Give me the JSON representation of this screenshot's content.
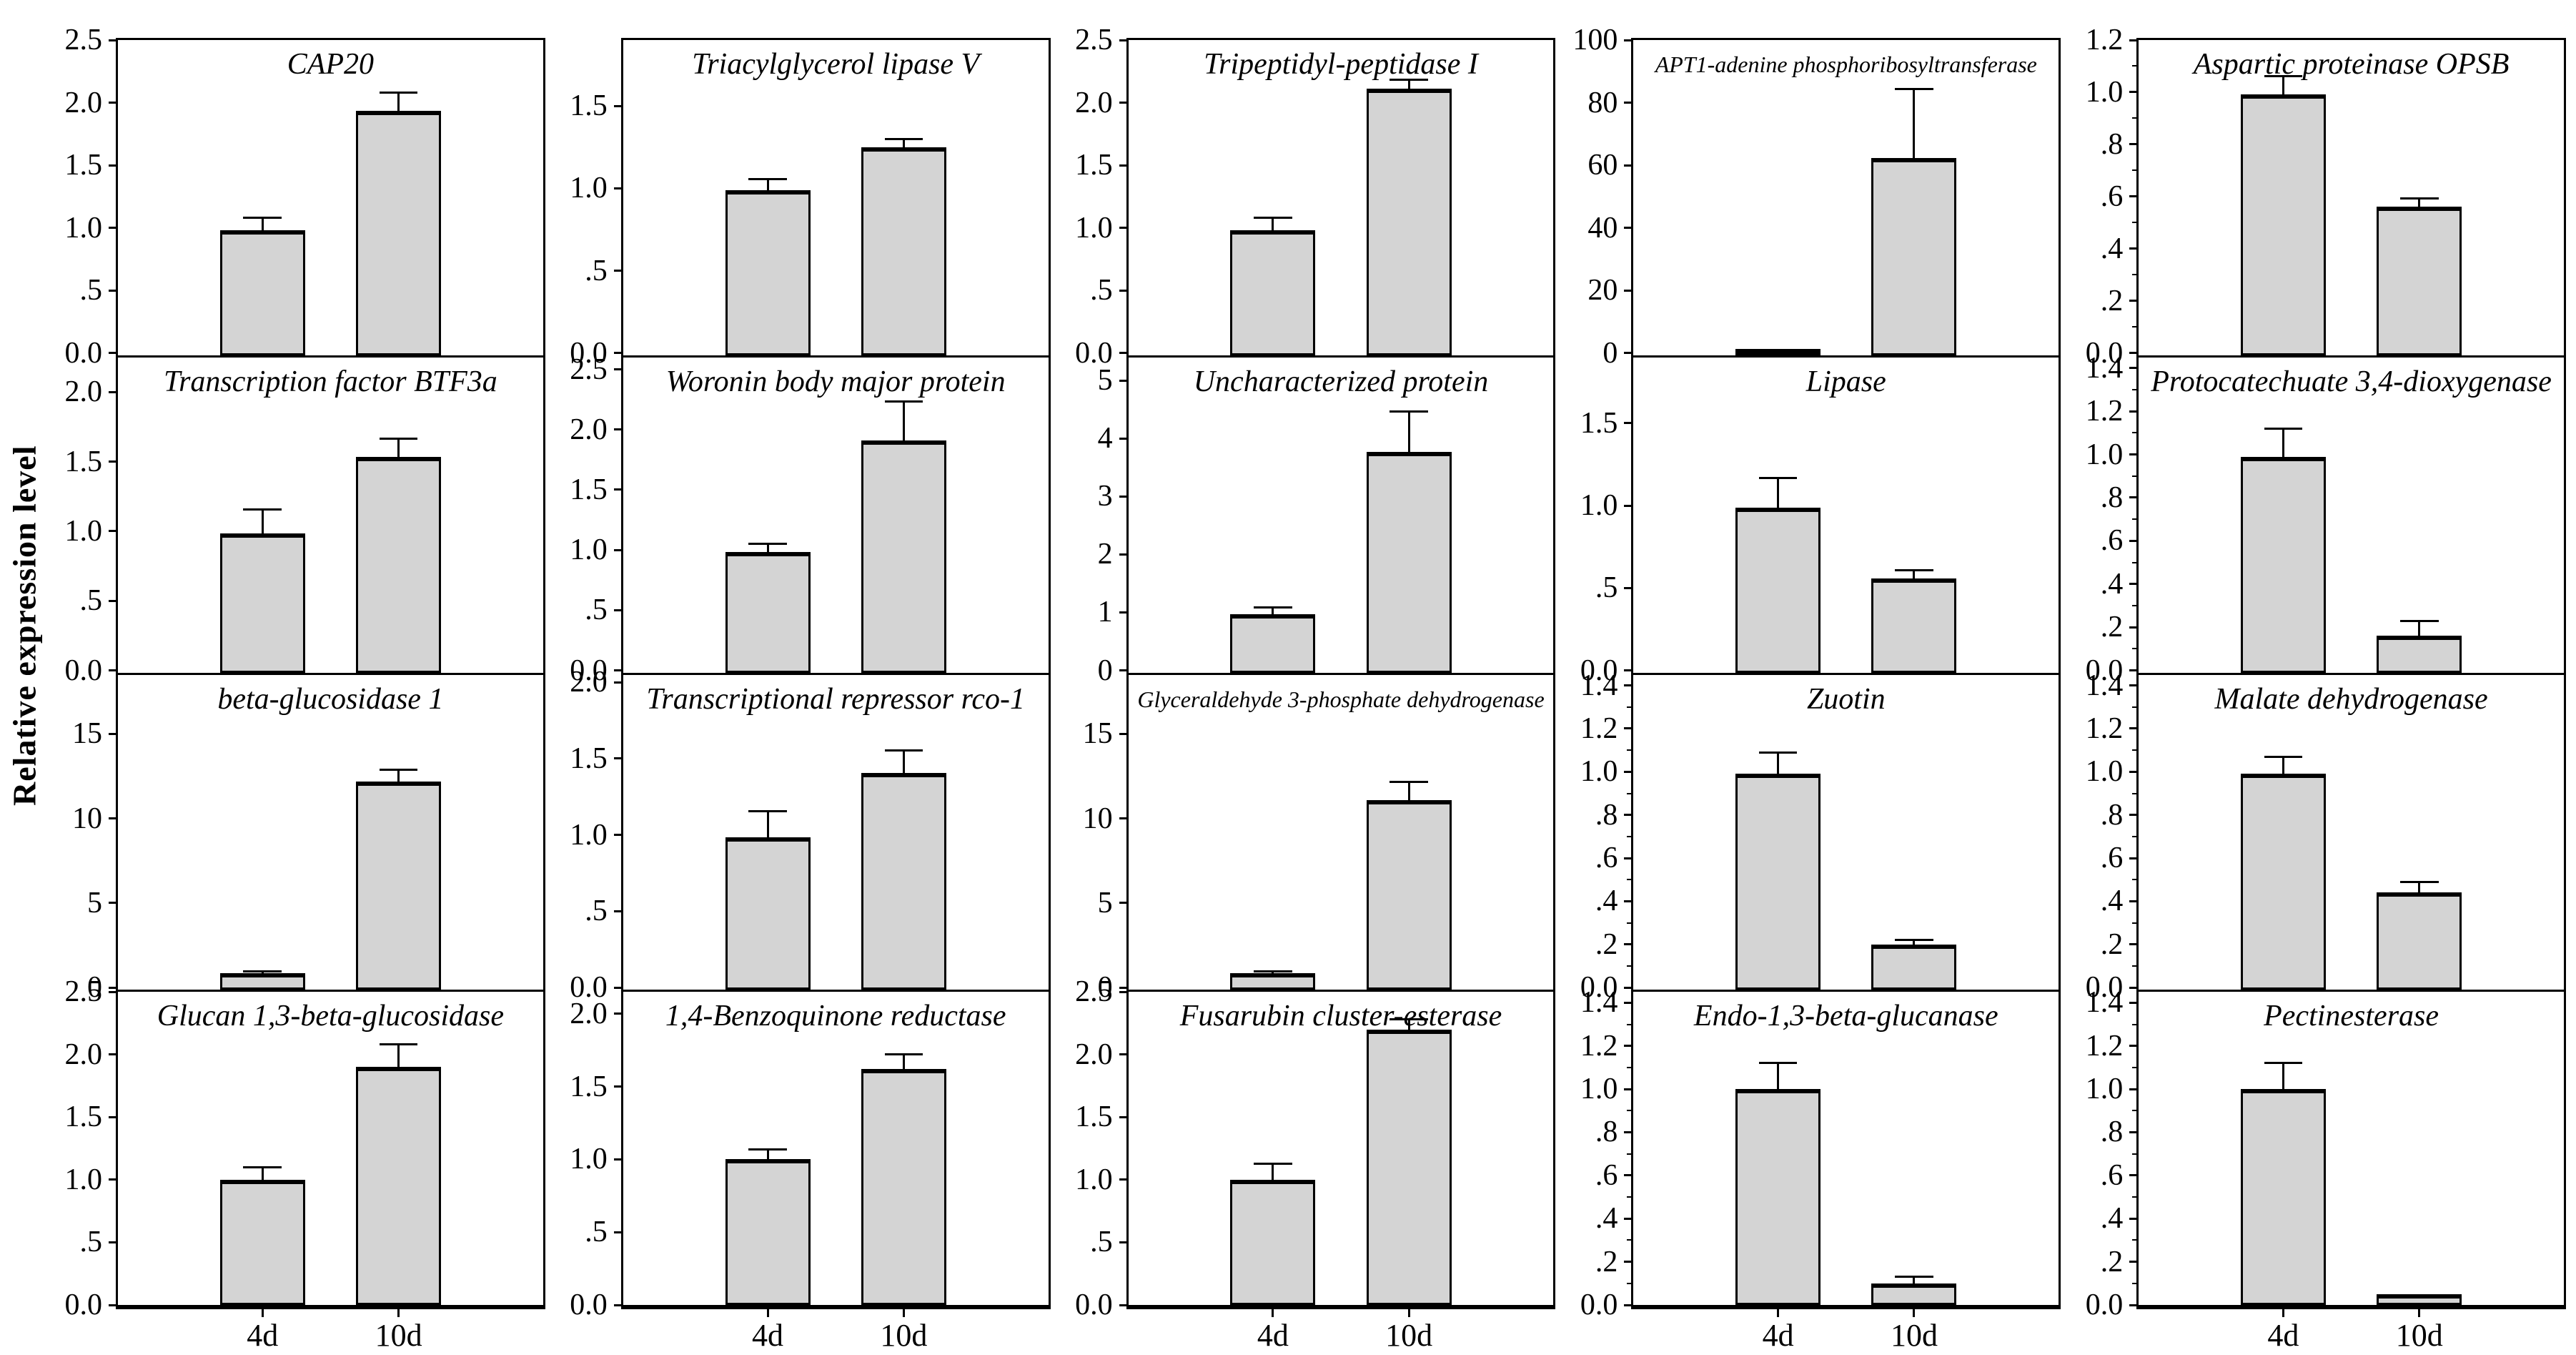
{
  "chart_data": {
    "type": "bar",
    "title": "",
    "ylabel": "Relative expression level",
    "x_categories": [
      "4d",
      "10d"
    ],
    "layout": {
      "rows": 4,
      "cols": 5,
      "grid": false,
      "legend": "none"
    },
    "bar_color": "#d4d4d4",
    "axis_color": "#000000",
    "panels": [
      {
        "title": "CAP20",
        "ymax": 2.5,
        "yticks": [
          {
            "v": 0,
            "label": "0.0"
          },
          {
            "v": 0.5,
            "label": ".5"
          },
          {
            "v": 1,
            "label": "1.0"
          },
          {
            "v": 1.5,
            "label": "1.5"
          },
          {
            "v": 2,
            "label": "2.0"
          },
          {
            "v": 2.5,
            "label": "2.5"
          }
        ],
        "minor_ticks": [],
        "bars": [
          {
            "label": "4d",
            "value": 1.0,
            "err": 0.1
          },
          {
            "label": "10d",
            "value": 1.95,
            "err": 0.15
          }
        ]
      },
      {
        "title": "Triacylglycerol lipase V",
        "ymax": 1.9,
        "yticks": [
          {
            "v": 0,
            "label": "0.0"
          },
          {
            "v": 0.5,
            "label": ".5"
          },
          {
            "v": 1,
            "label": "1.0"
          },
          {
            "v": 1.5,
            "label": "1.5"
          }
        ],
        "minor_ticks": [],
        "bars": [
          {
            "label": "4d",
            "value": 1.0,
            "err": 0.07
          },
          {
            "label": "10d",
            "value": 1.26,
            "err": 0.05
          }
        ]
      },
      {
        "title": "Tripeptidyl-peptidase I",
        "ymax": 2.5,
        "yticks": [
          {
            "v": 0,
            "label": "0.0"
          },
          {
            "v": 0.5,
            "label": ".5"
          },
          {
            "v": 1,
            "label": "1.0"
          },
          {
            "v": 1.5,
            "label": "1.5"
          },
          {
            "v": 2,
            "label": "2.0"
          },
          {
            "v": 2.5,
            "label": "2.5"
          }
        ],
        "minor_ticks": [],
        "bars": [
          {
            "label": "4d",
            "value": 1.0,
            "err": 0.1
          },
          {
            "label": "10d",
            "value": 2.13,
            "err": 0.07
          }
        ]
      },
      {
        "title": "APT1-adenine phosphoribosyltransferase",
        "small_title": true,
        "ymax": 100,
        "yticks": [
          {
            "v": 0,
            "label": "0"
          },
          {
            "v": 20,
            "label": "20"
          },
          {
            "v": 40,
            "label": "40"
          },
          {
            "v": 60,
            "label": "60"
          },
          {
            "v": 80,
            "label": "80"
          },
          {
            "v": 100,
            "label": "100"
          }
        ],
        "minor_ticks": [],
        "bars": [
          {
            "label": "4d",
            "value": 1.0,
            "err": 0
          },
          {
            "label": "10d",
            "value": 63,
            "err": 22
          }
        ]
      },
      {
        "title": "Aspartic proteinase OPSB",
        "ymax": 1.2,
        "yticks": [
          {
            "v": 0,
            "label": "0.0"
          },
          {
            "v": 0.2,
            "label": ".2"
          },
          {
            "v": 0.4,
            "label": ".4"
          },
          {
            "v": 0.6,
            "label": ".6"
          },
          {
            "v": 0.8,
            "label": ".8"
          },
          {
            "v": 1,
            "label": "1.0"
          },
          {
            "v": 1.2,
            "label": "1.2"
          }
        ],
        "minor_ticks": [
          0.1,
          0.3,
          0.5,
          0.7,
          0.9,
          1.1
        ],
        "bars": [
          {
            "label": "4d",
            "value": 1.0,
            "err": 0.07
          },
          {
            "label": "10d",
            "value": 0.57,
            "err": 0.03
          }
        ]
      },
      {
        "title": "Transcription factor BTF3a",
        "ymax": 2.25,
        "yticks": [
          {
            "v": 0,
            "label": "0.0"
          },
          {
            "v": 0.5,
            "label": ".5"
          },
          {
            "v": 1,
            "label": "1.0"
          },
          {
            "v": 1.5,
            "label": "1.5"
          },
          {
            "v": 2,
            "label": "2.0"
          }
        ],
        "minor_ticks": [],
        "bars": [
          {
            "label": "4d",
            "value": 1.0,
            "err": 0.17
          },
          {
            "label": "10d",
            "value": 1.55,
            "err": 0.13
          }
        ]
      },
      {
        "title": "Woronin body major protein",
        "ymax": 2.6,
        "yticks": [
          {
            "v": 0,
            "label": "0.0"
          },
          {
            "v": 0.5,
            "label": ".5"
          },
          {
            "v": 1,
            "label": "1.0"
          },
          {
            "v": 1.5,
            "label": "1.5"
          },
          {
            "v": 2,
            "label": "2.0"
          },
          {
            "v": 2.5,
            "label": "2.5"
          }
        ],
        "minor_ticks": [],
        "bars": [
          {
            "label": "4d",
            "value": 1.0,
            "err": 0.07
          },
          {
            "label": "10d",
            "value": 1.93,
            "err": 0.32
          }
        ]
      },
      {
        "title": "Uncharacterized protein",
        "ymax": 5.4,
        "yticks": [
          {
            "v": 0,
            "label": "0"
          },
          {
            "v": 1,
            "label": "1"
          },
          {
            "v": 2,
            "label": "2"
          },
          {
            "v": 3,
            "label": "3"
          },
          {
            "v": 4,
            "label": "4"
          },
          {
            "v": 5,
            "label": "5"
          }
        ],
        "minor_ticks": [],
        "bars": [
          {
            "label": "4d",
            "value": 1.0,
            "err": 0.12
          },
          {
            "label": "10d",
            "value": 3.8,
            "err": 0.7
          }
        ]
      },
      {
        "title": "Lipase",
        "ymax": 1.9,
        "yticks": [
          {
            "v": 0,
            "label": "0.0"
          },
          {
            "v": 0.5,
            "label": ".5"
          },
          {
            "v": 1,
            "label": "1.0"
          },
          {
            "v": 1.5,
            "label": "1.5"
          }
        ],
        "minor_ticks": [],
        "bars": [
          {
            "label": "4d",
            "value": 1.0,
            "err": 0.18
          },
          {
            "label": "10d",
            "value": 0.57,
            "err": 0.05
          }
        ]
      },
      {
        "title": "Protocatechuate 3,4-dioxygenase",
        "ymax": 1.45,
        "yticks": [
          {
            "v": 0,
            "label": "0.0"
          },
          {
            "v": 0.2,
            "label": ".2"
          },
          {
            "v": 0.4,
            "label": ".4"
          },
          {
            "v": 0.6,
            "label": ".6"
          },
          {
            "v": 0.8,
            "label": ".8"
          },
          {
            "v": 1,
            "label": "1.0"
          },
          {
            "v": 1.2,
            "label": "1.2"
          },
          {
            "v": 1.4,
            "label": "1.4"
          }
        ],
        "minor_ticks": [
          0.1,
          0.3,
          0.5,
          0.7,
          0.9,
          1.1,
          1.3
        ],
        "bars": [
          {
            "label": "4d",
            "value": 1.0,
            "err": 0.13
          },
          {
            "label": "10d",
            "value": 0.17,
            "err": 0.07
          }
        ]
      },
      {
        "title": "beta-glucosidase 1",
        "ymax": 18.5,
        "yticks": [
          {
            "v": 0,
            "label": "0"
          },
          {
            "v": 5,
            "label": "5"
          },
          {
            "v": 10,
            "label": "10"
          },
          {
            "v": 15,
            "label": "15"
          }
        ],
        "minor_ticks": [],
        "bars": [
          {
            "label": "4d",
            "value": 1.0,
            "err": 0.1
          },
          {
            "label": "10d",
            "value": 12.3,
            "err": 0.7
          }
        ]
      },
      {
        "title": "Transcriptional repressor rco-1",
        "ymax": 2.05,
        "yticks": [
          {
            "v": 0,
            "label": "0.0"
          },
          {
            "v": 0.5,
            "label": ".5"
          },
          {
            "v": 1,
            "label": "1.0"
          },
          {
            "v": 1.5,
            "label": "1.5"
          },
          {
            "v": 2,
            "label": "2.0"
          }
        ],
        "minor_ticks": [],
        "bars": [
          {
            "label": "4d",
            "value": 1.0,
            "err": 0.17
          },
          {
            "label": "10d",
            "value": 1.42,
            "err": 0.15
          }
        ]
      },
      {
        "title": "Glyceraldehyde 3-phosphate dehydrogenase",
        "small_title": true,
        "ymax": 18.5,
        "yticks": [
          {
            "v": 0,
            "label": "0"
          },
          {
            "v": 5,
            "label": "5"
          },
          {
            "v": 10,
            "label": "10"
          },
          {
            "v": 15,
            "label": "15"
          }
        ],
        "minor_ticks": [],
        "bars": [
          {
            "label": "4d",
            "value": 1.0,
            "err": 0.1
          },
          {
            "label": "10d",
            "value": 11.2,
            "err": 1.1
          }
        ]
      },
      {
        "title": "Zuotin",
        "ymax": 1.45,
        "yticks": [
          {
            "v": 0,
            "label": "0.0"
          },
          {
            "v": 0.2,
            "label": ".2"
          },
          {
            "v": 0.4,
            "label": ".4"
          },
          {
            "v": 0.6,
            "label": ".6"
          },
          {
            "v": 0.8,
            "label": ".8"
          },
          {
            "v": 1,
            "label": "1.0"
          },
          {
            "v": 1.2,
            "label": "1.2"
          },
          {
            "v": 1.4,
            "label": "1.4"
          }
        ],
        "minor_ticks": [
          0.1,
          0.3,
          0.5,
          0.7,
          0.9,
          1.1,
          1.3
        ],
        "bars": [
          {
            "label": "4d",
            "value": 1.0,
            "err": 0.1
          },
          {
            "label": "10d",
            "value": 0.21,
            "err": 0.02
          }
        ]
      },
      {
        "title": "Malate dehydrogenase",
        "ymax": 1.45,
        "yticks": [
          {
            "v": 0,
            "label": "0.0"
          },
          {
            "v": 0.2,
            "label": ".2"
          },
          {
            "v": 0.4,
            "label": ".4"
          },
          {
            "v": 0.6,
            "label": ".6"
          },
          {
            "v": 0.8,
            "label": ".8"
          },
          {
            "v": 1,
            "label": "1.0"
          },
          {
            "v": 1.2,
            "label": "1.2"
          },
          {
            "v": 1.4,
            "label": "1.4"
          }
        ],
        "minor_ticks": [
          0.1,
          0.3,
          0.5,
          0.7,
          0.9,
          1.1,
          1.3
        ],
        "bars": [
          {
            "label": "4d",
            "value": 1.0,
            "err": 0.08
          },
          {
            "label": "10d",
            "value": 0.45,
            "err": 0.05
          }
        ]
      },
      {
        "title": "Glucan 1,3-beta-glucosidase",
        "ymax": 2.5,
        "yticks": [
          {
            "v": 0,
            "label": "0.0"
          },
          {
            "v": 0.5,
            "label": ".5"
          },
          {
            "v": 1,
            "label": "1.0"
          },
          {
            "v": 1.5,
            "label": "1.5"
          },
          {
            "v": 2,
            "label": "2.0"
          },
          {
            "v": 2.5,
            "label": "2.5"
          }
        ],
        "minor_ticks": [],
        "bars": [
          {
            "label": "4d",
            "value": 1.0,
            "err": 0.1
          },
          {
            "label": "10d",
            "value": 1.9,
            "err": 0.18
          }
        ]
      },
      {
        "title": "1,4-Benzoquinone reductase",
        "ymax": 2.15,
        "yticks": [
          {
            "v": 0,
            "label": "0.0"
          },
          {
            "v": 0.5,
            "label": ".5"
          },
          {
            "v": 1,
            "label": "1.0"
          },
          {
            "v": 1.5,
            "label": "1.5"
          },
          {
            "v": 2,
            "label": "2.0"
          }
        ],
        "minor_ticks": [],
        "bars": [
          {
            "label": "4d",
            "value": 1.0,
            "err": 0.07
          },
          {
            "label": "10d",
            "value": 1.62,
            "err": 0.1
          }
        ]
      },
      {
        "title": "Fusarubin cluster-esterase",
        "ymax": 2.5,
        "yticks": [
          {
            "v": 0,
            "label": "0.0"
          },
          {
            "v": 0.5,
            "label": ".5"
          },
          {
            "v": 1,
            "label": "1.0"
          },
          {
            "v": 1.5,
            "label": "1.5"
          },
          {
            "v": 2,
            "label": "2.0"
          },
          {
            "v": 2.5,
            "label": "2.5"
          }
        ],
        "minor_ticks": [],
        "bars": [
          {
            "label": "4d",
            "value": 1.0,
            "err": 0.13
          },
          {
            "label": "10d",
            "value": 2.2,
            "err": 0.08
          }
        ]
      },
      {
        "title": "Endo-1,3-beta-glucanase",
        "ymax": 1.45,
        "yticks": [
          {
            "v": 0,
            "label": "0.0"
          },
          {
            "v": 0.2,
            "label": ".2"
          },
          {
            "v": 0.4,
            "label": ".4"
          },
          {
            "v": 0.6,
            "label": ".6"
          },
          {
            "v": 0.8,
            "label": ".8"
          },
          {
            "v": 1,
            "label": "1.0"
          },
          {
            "v": 1.2,
            "label": "1.2"
          },
          {
            "v": 1.4,
            "label": "1.4"
          }
        ],
        "minor_ticks": [
          0.1,
          0.3,
          0.5,
          0.7,
          0.9,
          1.1,
          1.3
        ],
        "bars": [
          {
            "label": "4d",
            "value": 1.0,
            "err": 0.12
          },
          {
            "label": "10d",
            "value": 0.1,
            "err": 0.03
          }
        ]
      },
      {
        "title": "Pectinesterase",
        "ymax": 1.45,
        "yticks": [
          {
            "v": 0,
            "label": "0.0"
          },
          {
            "v": 0.2,
            "label": ".2"
          },
          {
            "v": 0.4,
            "label": ".4"
          },
          {
            "v": 0.6,
            "label": ".6"
          },
          {
            "v": 0.8,
            "label": ".8"
          },
          {
            "v": 1,
            "label": "1.0"
          },
          {
            "v": 1.2,
            "label": "1.2"
          },
          {
            "v": 1.4,
            "label": "1.4"
          }
        ],
        "minor_ticks": [
          0.1,
          0.3,
          0.5,
          0.7,
          0.9,
          1.1,
          1.3
        ],
        "bars": [
          {
            "label": "4d",
            "value": 1.0,
            "err": 0.12
          },
          {
            "label": "10d",
            "value": 0.05,
            "err": 0
          }
        ]
      }
    ]
  }
}
